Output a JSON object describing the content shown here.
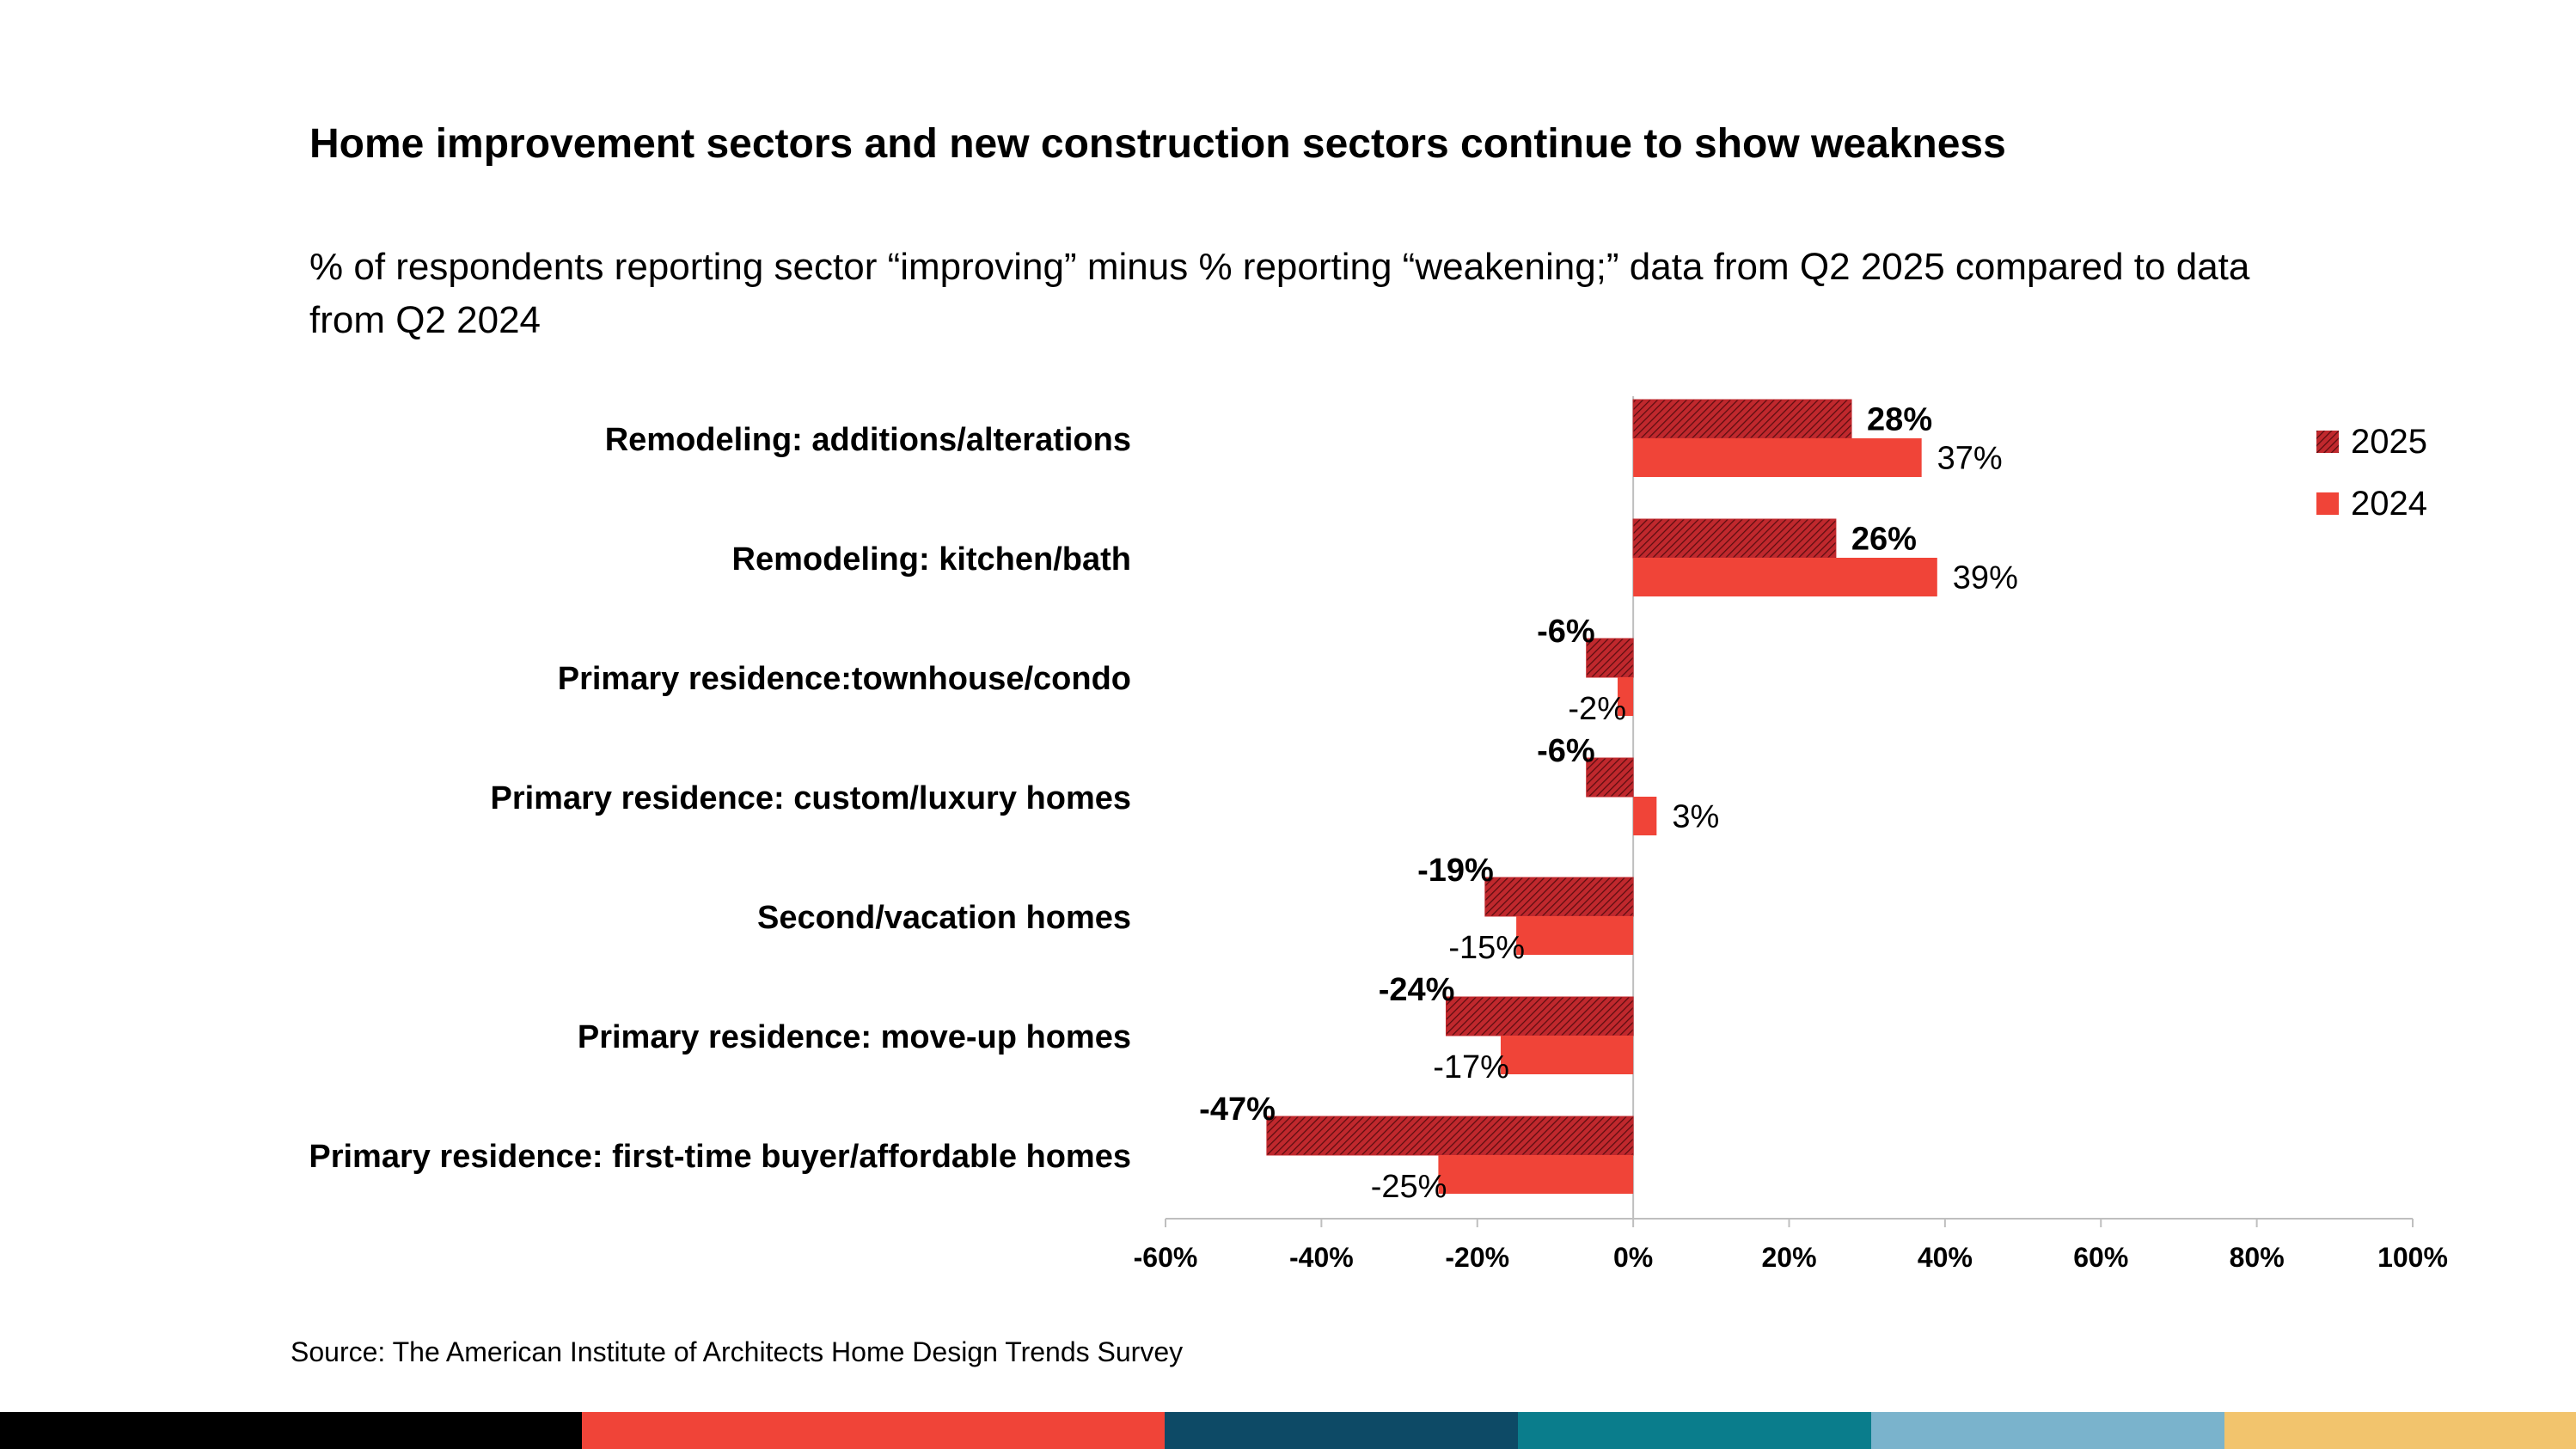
{
  "chart_data": {
    "type": "bar",
    "orientation": "horizontal",
    "title": "Home improvement sectors and new construction sectors continue to show weakness",
    "subtitle": "% of respondents reporting sector “improving” minus % reporting “weakening;” data from Q2 2025 compared to data from Q2 2024",
    "categories": [
      "Remodeling: additions/alterations",
      "Remodeling: kitchen/bath",
      "Primary residence:townhouse/condo",
      "Primary residence: custom/luxury homes",
      "Second/vacation homes",
      "Primary residence: move-up homes",
      "Primary residence: first-time buyer/affordable homes"
    ],
    "series": [
      {
        "name": "2025",
        "values": [
          28,
          26,
          -6,
          -6,
          -19,
          -24,
          -47
        ],
        "labels": [
          "28%",
          "26%",
          "-6%",
          "-6%",
          "-19%",
          "-24%",
          "-47%"
        ],
        "color": "#c0282d",
        "pattern": "hatched"
      },
      {
        "name": "2024",
        "values": [
          37,
          39,
          -2,
          3,
          -15,
          -17,
          -25
        ],
        "labels": [
          "37%",
          "39%",
          "-2%",
          "3%",
          "-15%",
          "-17%",
          "-25%"
        ],
        "color": "#f04438",
        "pattern": "solid"
      }
    ],
    "xlim": [
      -60,
      100
    ],
    "xticks": [
      -60,
      -40,
      -20,
      0,
      20,
      40,
      60,
      80,
      100
    ],
    "xtick_labels": [
      "-60%",
      "-40%",
      "-20%",
      "0%",
      "20%",
      "40%",
      "60%",
      "80%",
      "100%"
    ],
    "legend_position": "top-right",
    "grid": false
  },
  "source": "Source: The American Institute of Architects Home Design Trends Survey",
  "colors": {
    "bar_2025": "#c0282d",
    "bar_2024": "#f04438",
    "bottom_bar": [
      "#000000",
      "#f04438",
      "#0d4a66",
      "#0a7d8c",
      "#7ab3cc",
      "#f2c46d"
    ]
  }
}
